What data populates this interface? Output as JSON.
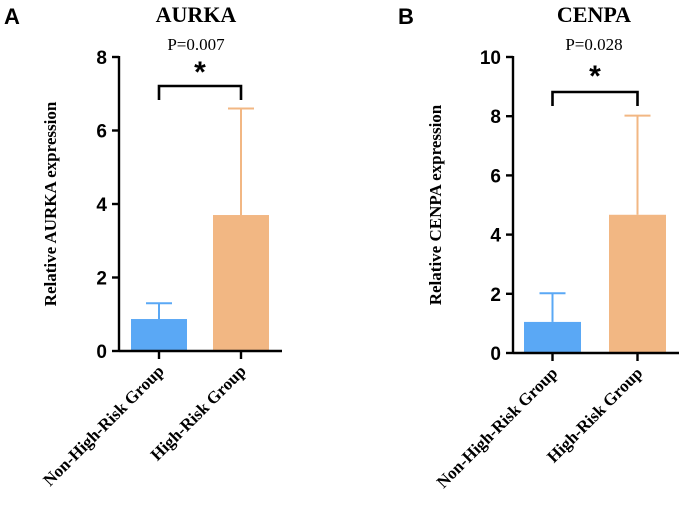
{
  "chart_data": [
    {
      "panel": "A",
      "type": "bar",
      "title": "AURKA",
      "subtitle": "P=0.007",
      "ylabel": "Relative AURKA expression",
      "xlabel": "",
      "ylim": [
        0,
        8
      ],
      "yticks": [
        0,
        2,
        4,
        6,
        8
      ],
      "categories": [
        "Non-High-Risk Group",
        "High-Risk Group"
      ],
      "values": [
        0.87,
        3.7
      ],
      "errors": [
        0.43,
        2.9
      ],
      "colors": [
        "#5aa8f5",
        "#f2b783"
      ],
      "significance": "*"
    },
    {
      "panel": "B",
      "type": "bar",
      "title": "CENPA",
      "subtitle": "P=0.028",
      "ylabel": "Relative CENPA expression",
      "xlabel": "",
      "ylim": [
        0,
        10
      ],
      "yticks": [
        0,
        2,
        4,
        6,
        8,
        10
      ],
      "categories": [
        "Non-High-Risk Group",
        "High-Risk Group"
      ],
      "values": [
        1.05,
        4.67
      ],
      "errors": [
        0.97,
        3.35
      ],
      "colors": [
        "#5aa8f5",
        "#f2b783"
      ],
      "significance": "*"
    }
  ]
}
